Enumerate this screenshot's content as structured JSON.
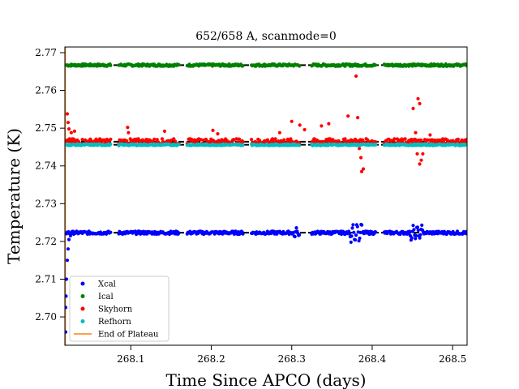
{
  "chart_data": {
    "type": "scatter",
    "title": "652/658 A, scanmode=0",
    "xlabel": "Time Since APCO (days)",
    "ylabel": "Temperature (K)",
    "xlim": [
      268.018,
      268.518
    ],
    "ylim": [
      2.6925,
      2.7715
    ],
    "xticks": [
      268.1,
      268.2,
      268.3,
      268.4,
      268.5
    ],
    "xtick_labels": [
      "268.1",
      "268.2",
      "268.3",
      "268.4",
      "268.5"
    ],
    "yticks": [
      2.7,
      2.71,
      2.72,
      2.73,
      2.74,
      2.75,
      2.76,
      2.77
    ],
    "ytick_labels": [
      "2.70",
      "2.71",
      "2.72",
      "2.73",
      "2.74",
      "2.75",
      "2.76",
      "2.77"
    ],
    "grid": false,
    "legend_position": "lower-left",
    "scan_segments": [
      [
        268.02,
        268.075
      ],
      [
        268.085,
        268.16
      ],
      [
        268.17,
        268.24
      ],
      [
        268.25,
        268.31
      ],
      [
        268.325,
        268.405
      ],
      [
        268.415,
        268.518
      ]
    ],
    "series": [
      {
        "name": "Xcal",
        "color": "#0000ff",
        "kind": "points",
        "level": 2.7223,
        "spread": 0.0004,
        "initial_points": [
          [
            268.019,
            2.696
          ],
          [
            268.019,
            2.7025
          ],
          [
            268.0195,
            2.7055
          ],
          [
            268.02,
            2.71
          ],
          [
            268.021,
            2.715
          ],
          [
            268.022,
            2.718
          ],
          [
            268.023,
            2.7205
          ],
          [
            268.025,
            2.7215
          ]
        ],
        "disturbances": [
          [
            268.31,
            0.001
          ],
          [
            268.38,
            0.0022
          ],
          [
            268.455,
            0.0018
          ]
        ],
        "reference_level": 2.7223
      },
      {
        "name": "Ical",
        "color": "#008000",
        "kind": "points",
        "level": 2.7667,
        "spread": 0.0003,
        "initial_points": [],
        "disturbances": [],
        "reference_level": 2.7667
      },
      {
        "name": "Skyhorn",
        "color": "#ff0000",
        "kind": "points",
        "level": 2.7464,
        "spread": 0.0008,
        "initial_points": [
          [
            268.021,
            2.7538
          ],
          [
            268.022,
            2.7515
          ],
          [
            268.023,
            2.7498
          ],
          [
            268.026,
            2.7488
          ],
          [
            268.03,
            2.7492
          ]
        ],
        "outliers": [
          [
            268.096,
            2.7502
          ],
          [
            268.097,
            2.7488
          ],
          [
            268.142,
            2.7492
          ],
          [
            268.202,
            2.7494
          ],
          [
            268.208,
            2.7485
          ],
          [
            268.285,
            2.7488
          ],
          [
            268.3,
            2.7518
          ],
          [
            268.31,
            2.7508
          ],
          [
            268.316,
            2.7496
          ],
          [
            268.337,
            2.7506
          ],
          [
            268.346,
            2.7512
          ],
          [
            268.37,
            2.7532
          ],
          [
            268.38,
            2.7638
          ],
          [
            268.382,
            2.7528
          ],
          [
            268.386,
            2.7422
          ],
          [
            268.387,
            2.7385
          ],
          [
            268.389,
            2.7392
          ],
          [
            268.384,
            2.7446
          ],
          [
            268.451,
            2.7552
          ],
          [
            268.457,
            2.7578
          ],
          [
            268.459,
            2.7565
          ],
          [
            268.454,
            2.7488
          ],
          [
            268.456,
            2.7432
          ],
          [
            268.459,
            2.7405
          ],
          [
            268.461,
            2.7415
          ],
          [
            268.463,
            2.7432
          ],
          [
            268.466,
            2.7462
          ],
          [
            268.472,
            2.7482
          ]
        ],
        "reference_level": 2.7464
      },
      {
        "name": "Refhorn",
        "color": "#00bfbf",
        "kind": "points",
        "level": 2.7456,
        "spread": 0.0002,
        "initial_points": [],
        "disturbances": [],
        "reference_level": 2.7456
      },
      {
        "name": "End of Plateau",
        "color": "#ff7f0e",
        "kind": "vline",
        "x": 268.0185
      }
    ]
  }
}
